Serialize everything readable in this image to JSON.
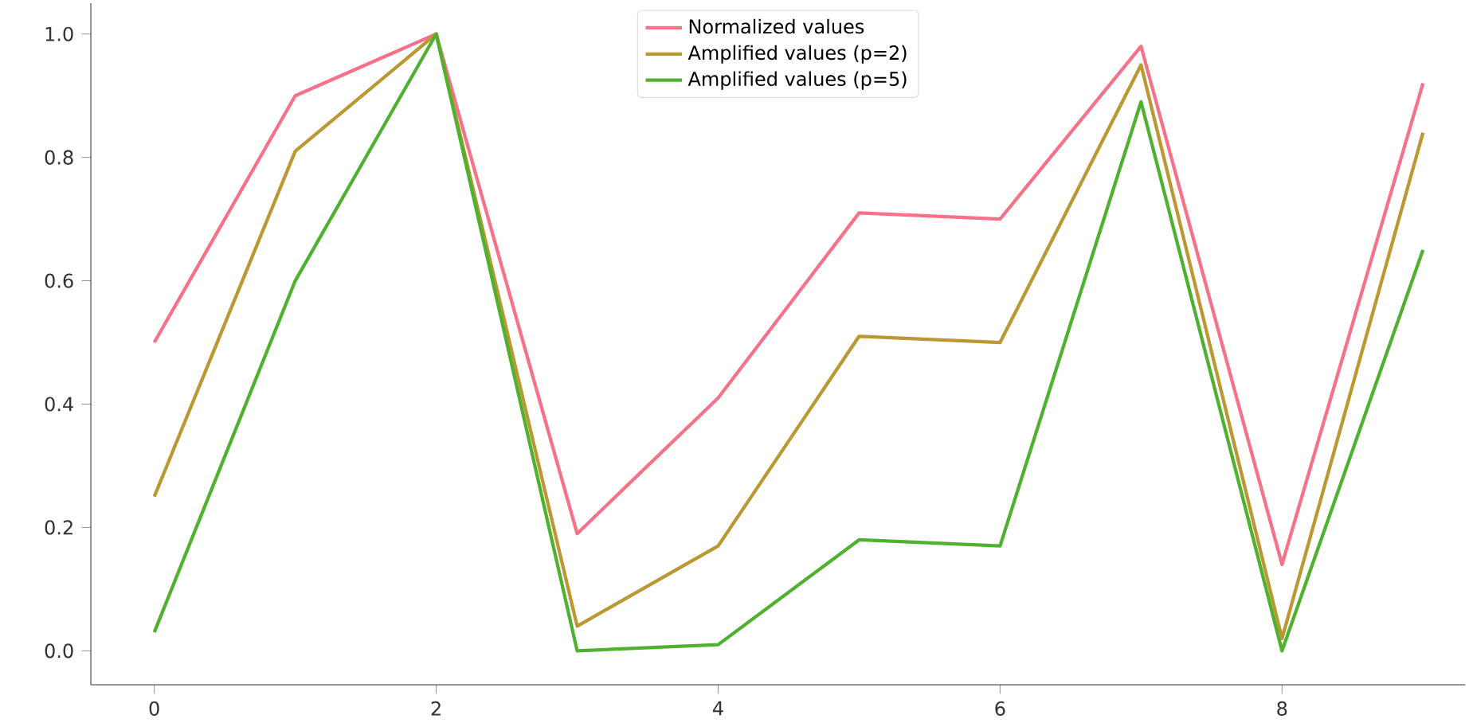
{
  "chart_data": {
    "type": "line",
    "x": [
      0,
      1,
      2,
      3,
      4,
      5,
      6,
      7,
      8,
      9
    ],
    "series": [
      {
        "name": "Normalized values",
        "color": "#f77189",
        "values": [
          0.5,
          0.9,
          1.0,
          0.19,
          0.41,
          0.71,
          0.7,
          0.98,
          0.14,
          0.92
        ]
      },
      {
        "name": "Amplified values (p=2)",
        "color": "#bb9832",
        "values": [
          0.25,
          0.81,
          1.0,
          0.04,
          0.17,
          0.51,
          0.5,
          0.95,
          0.02,
          0.84
        ]
      },
      {
        "name": "Amplified values (p=5)",
        "color": "#50b131",
        "values": [
          0.03,
          0.6,
          1.0,
          0.0,
          0.01,
          0.18,
          0.17,
          0.89,
          0.0,
          0.65
        ]
      }
    ],
    "xlim": [
      -0.45,
      9.3
    ],
    "ylim": [
      -0.055,
      1.05
    ],
    "xticks": [
      0,
      2,
      4,
      6,
      8
    ],
    "yticks": [
      {
        "value": 0,
        "label": "0.0"
      },
      {
        "value": 0.2,
        "label": "0.2"
      },
      {
        "value": 0.4,
        "label": "0.4"
      },
      {
        "value": 0.6,
        "label": "0.6"
      },
      {
        "value": 0.8,
        "label": "0.8"
      },
      {
        "value": 1.0,
        "label": "1.0"
      }
    ],
    "grid": false,
    "legend": "top",
    "marker": "none",
    "line_style": "solid"
  }
}
